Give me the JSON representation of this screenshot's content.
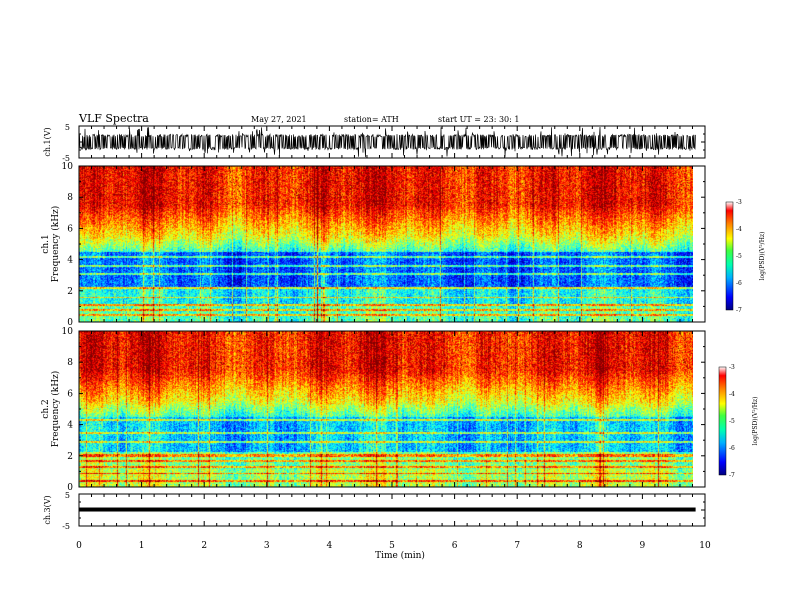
{
  "header": {
    "title": "VLF Spectra",
    "date": "May 27, 2021",
    "station": "station= ATH",
    "start": "start  UT  =    23: 30: 1"
  },
  "chart_data": [
    {
      "type": "line",
      "name": "ch1-waveform",
      "ylabel": "ch.1(V)",
      "ylim": [
        -5,
        5
      ],
      "yticks": [
        "5",
        "-5"
      ],
      "xlim": [
        0,
        10
      ],
      "description_level": [
        -1.8,
        1.8
      ]
    },
    {
      "type": "heatmap",
      "name": "ch1-spectrogram",
      "ylabel": "ch.1\nFrequency (kHz)",
      "ylabel_lines": [
        "ch.1",
        "Frequency  (kHz)"
      ],
      "ylim": [
        0,
        10
      ],
      "yticks": [
        "0",
        "2",
        "4",
        "6",
        "8",
        "10"
      ],
      "xlim": [
        0,
        10
      ],
      "colorbar": {
        "label": "log(PSD)(V²/Hz)",
        "range": [
          -7,
          -3
        ],
        "ticks": [
          "-3",
          "-4",
          "-5",
          "-6",
          "-7"
        ]
      }
    },
    {
      "type": "heatmap",
      "name": "ch2-spectrogram",
      "ylabel_lines": [
        "ch.2",
        "Frequency  (kHz)"
      ],
      "ylim": [
        0,
        10
      ],
      "yticks": [
        "0",
        "2",
        "4",
        "6",
        "8",
        "10"
      ],
      "xlim": [
        0,
        10
      ],
      "colorbar": {
        "label": "log(PSD)(V²/Hz)",
        "range": [
          -7,
          -3
        ],
        "ticks": [
          "-3",
          "-4",
          "-5",
          "-6",
          "-7"
        ]
      }
    },
    {
      "type": "line",
      "name": "ch3-waveform",
      "ylabel": "ch.3(V)",
      "ylim": [
        -5,
        5
      ],
      "yticks": [
        "5",
        "-5"
      ],
      "xlim": [
        0,
        10
      ],
      "level": 0.15
    }
  ],
  "xaxis": {
    "label": "Time  (min)",
    "ticks": [
      "0",
      "1",
      "2",
      "3",
      "4",
      "5",
      "6",
      "7",
      "8",
      "9",
      "10"
    ],
    "data_end": 9.85
  },
  "colors": {
    "jet": [
      "#00008f",
      "#0000ff",
      "#0080ff",
      "#00ffff",
      "#80ff80",
      "#ffff00",
      "#ff8000",
      "#ff0000",
      "#800000"
    ]
  }
}
